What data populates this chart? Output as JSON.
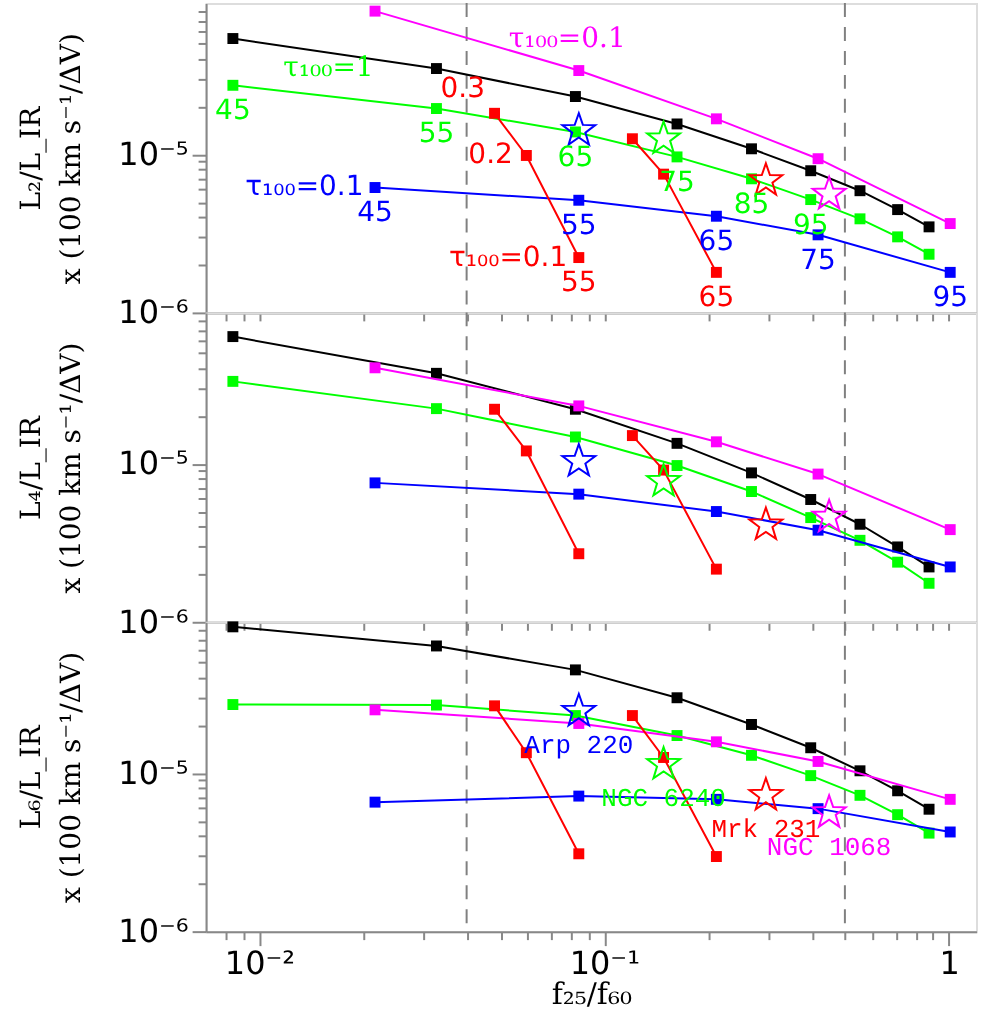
{
  "chart_data": [
    {
      "type": "line",
      "ylabel": "L₂/L_IR\nx (100 km s⁻¹/ΔV)",
      "log": "xy",
      "marker": "square",
      "tick_labels": "y",
      "xlim": [
        0.007,
        1.2
      ],
      "ylim": [
        1e-06,
        9e-05
      ],
      "xticks": [
        {
          "value": 0.008,
          "label": null
        },
        {
          "value": 0.009,
          "label": null
        },
        {
          "value": 0.01,
          "label": null
        },
        {
          "value": 0.02,
          "label": null
        },
        {
          "value": 0.03,
          "label": null
        },
        {
          "value": 0.04,
          "label": null
        },
        {
          "value": 0.05,
          "label": null
        },
        {
          "value": 0.06,
          "label": null
        },
        {
          "value": 0.07,
          "label": null
        },
        {
          "value": 0.08,
          "label": null
        },
        {
          "value": 0.09,
          "label": null
        },
        {
          "value": 0.1,
          "label": null
        },
        {
          "value": 0.2,
          "label": null
        },
        {
          "value": 0.3,
          "label": null
        },
        {
          "value": 0.4,
          "label": null
        },
        {
          "value": 0.5,
          "label": null
        },
        {
          "value": 0.6,
          "label": null
        },
        {
          "value": 0.7,
          "label": null
        },
        {
          "value": 0.8,
          "label": null
        },
        {
          "value": 0.9,
          "label": null
        },
        {
          "value": 1,
          "label": null
        }
      ],
      "yticks": [
        {
          "value": 1e-06,
          "label": "10⁻⁶"
        },
        {
          "value": 2e-06,
          "label": null
        },
        {
          "value": 3e-06,
          "label": null
        },
        {
          "value": 4e-06,
          "label": null
        },
        {
          "value": 5e-06,
          "label": null
        },
        {
          "value": 6e-06,
          "label": null
        },
        {
          "value": 7e-06,
          "label": null
        },
        {
          "value": 8e-06,
          "label": null
        },
        {
          "value": 9e-06,
          "label": null
        },
        {
          "value": 1e-05,
          "label": "10⁻⁵"
        },
        {
          "value": 2e-05,
          "label": null
        },
        {
          "value": 3e-05,
          "label": null
        },
        {
          "value": 4e-05,
          "label": null
        },
        {
          "value": 5e-05,
          "label": null
        },
        {
          "value": 6e-05,
          "label": null
        },
        {
          "value": 7e-05,
          "label": null
        },
        {
          "value": 8e-05,
          "label": null
        }
      ],
      "ref_lines": [
        {
          "axis": "x",
          "value": 0.04,
          "color": "#808080",
          "line_style": "dashed"
        },
        {
          "axis": "x",
          "value": 0.5,
          "color": "#808080",
          "line_style": "dashed"
        }
      ],
      "series": [
        {
          "color": "#000000",
          "x": [
            0.0084,
            0.0327,
            0.0827,
            0.163,
            0.268,
            0.398,
            0.553,
            0.711,
            0.877
          ],
          "values": [
            5.37e-05,
            3.47e-05,
            2.31e-05,
            1.55e-05,
            1.08e-05,
            7.85e-06,
            5.87e-06,
            4.46e-06,
            3.47e-06
          ]
        },
        {
          "color": "#00ff00",
          "x": [
            0.0084,
            0.0327,
            0.0827,
            0.163,
            0.268,
            0.398,
            0.553,
            0.711,
            0.877
          ],
          "values": [
            2.72e-05,
            1.94e-05,
            1.38e-05,
            9.6e-06,
            6.98e-06,
            5.16e-06,
            3.9e-06,
            3e-06,
            2.33e-06
          ]
        },
        {
          "color": "#ff00ff",
          "x": [
            0.0217,
            0.0846,
            0.212,
            0.418,
            1.01
          ],
          "values": [
            8e-05,
            3.37e-05,
            1.67e-05,
            9.35e-06,
            3.64e-06
          ]
        },
        {
          "color": "#0000ff",
          "x": [
            0.0217,
            0.0846,
            0.212,
            0.418,
            1.01
          ],
          "values": [
            6.15e-06,
            5.11e-06,
            4.05e-06,
            3.09e-06,
            1.79e-06
          ]
        },
        {
          "color": "#ff0000",
          "x": [
            0.0482,
            0.0596,
            0.0846
          ],
          "values": [
            1.81e-05,
            9.8e-06,
            2.22e-06
          ]
        },
        {
          "color": "#ff0000",
          "x": [
            0.121,
            0.149,
            0.212
          ],
          "values": [
            1.25e-05,
            7.47e-06,
            1.79e-06
          ]
        },
        {
          "type": "scatter",
          "marker": "star",
          "color": "#0000ff",
          "x": [
            0.0846
          ],
          "values": [
            1.41e-05
          ]
        },
        {
          "type": "scatter",
          "marker": "star",
          "color": "#00ff00",
          "x": [
            0.149
          ],
          "values": [
            1.25e-05
          ]
        },
        {
          "type": "scatter",
          "marker": "star",
          "color": "#ff0000",
          "x": [
            0.295
          ],
          "values": [
            6.8e-06
          ]
        },
        {
          "type": "scatter",
          "marker": "star",
          "color": "#ff00ff",
          "x": [
            0.45
          ],
          "values": [
            5.58e-06
          ]
        }
      ],
      "annotations": [
        {
          "text": "τ₁₀₀=0.1",
          "x": 0.0783,
          "y": 3.54e-05
        },
        {
          "text": "τ₁₀₀=1",
          "x": 0.0159,
          "y": 2.32e-05
        },
        {
          "text": "0.3",
          "x": 0.0482,
          "y": 1.81e-05
        },
        {
          "text": "0.2",
          "x": 0.0596,
          "y": 9.8e-06
        },
        {
          "text": "45",
          "x": 0.0084,
          "y": 2.72e-05
        },
        {
          "text": "55",
          "x": 0.0327,
          "y": 1.94e-05
        },
        {
          "text": "65",
          "x": 0.0827,
          "y": 1.38e-05
        },
        {
          "text": "75",
          "x": 0.163,
          "y": 9.6e-06
        },
        {
          "text": "85",
          "x": 0.268,
          "y": 6.98e-06
        },
        {
          "text": "95",
          "x": 0.398,
          "y": 5.16e-06
        },
        {
          "text": "45",
          "x": 0.0217,
          "y": 6.15e-06
        },
        {
          "text": "τ₁₀₀=0.1",
          "x": 0.0217,
          "y": 6.15e-06
        },
        {
          "text": "55",
          "x": 0.0846,
          "y": 5.11e-06
        },
        {
          "text": "65",
          "x": 0.212,
          "y": 4.05e-06
        },
        {
          "text": "75",
          "x": 0.418,
          "y": 3.09e-06
        },
        {
          "text": "95",
          "x": 1.01,
          "y": 1.79e-06
        },
        {
          "text": "55",
          "x": 0.0846,
          "y": 2.22e-06
        },
        {
          "text": "τ₁₀₀=0.1",
          "x": 0.0846,
          "y": 2.22e-06
        },
        {
          "text": "65",
          "x": 0.212,
          "y": 1.79e-06
        }
      ]
    },
    {
      "type": "line",
      "ylabel": "L₄/L_IR\nx (100 km s⁻¹/ΔV)",
      "log": "xy",
      "marker": "square",
      "tick_labels": "y",
      "xlim": [
        0.007,
        1.2
      ],
      "ylim": [
        1e-06,
        9e-05
      ],
      "xticks": [
        {
          "value": 0.008,
          "label": null
        },
        {
          "value": 0.009,
          "label": null
        },
        {
          "value": 0.01,
          "label": null
        },
        {
          "value": 0.02,
          "label": null
        },
        {
          "value": 0.03,
          "label": null
        },
        {
          "value": 0.04,
          "label": null
        },
        {
          "value": 0.05,
          "label": null
        },
        {
          "value": 0.06,
          "label": null
        },
        {
          "value": 0.07,
          "label": null
        },
        {
          "value": 0.08,
          "label": null
        },
        {
          "value": 0.09,
          "label": null
        },
        {
          "value": 0.1,
          "label": null
        },
        {
          "value": 0.2,
          "label": null
        },
        {
          "value": 0.3,
          "label": null
        },
        {
          "value": 0.4,
          "label": null
        },
        {
          "value": 0.5,
          "label": null
        },
        {
          "value": 0.6,
          "label": null
        },
        {
          "value": 0.7,
          "label": null
        },
        {
          "value": 0.8,
          "label": null
        },
        {
          "value": 0.9,
          "label": null
        },
        {
          "value": 1,
          "label": null
        }
      ],
      "yticks": [
        {
          "value": 1e-06,
          "label": "10⁻⁶"
        },
        {
          "value": 2e-06,
          "label": null
        },
        {
          "value": 3e-06,
          "label": null
        },
        {
          "value": 4e-06,
          "label": null
        },
        {
          "value": 5e-06,
          "label": null
        },
        {
          "value": 6e-06,
          "label": null
        },
        {
          "value": 7e-06,
          "label": null
        },
        {
          "value": 8e-06,
          "label": null
        },
        {
          "value": 9e-06,
          "label": null
        },
        {
          "value": 1e-05,
          "label": "10⁻⁵"
        },
        {
          "value": 2e-05,
          "label": null
        },
        {
          "value": 3e-05,
          "label": null
        },
        {
          "value": 4e-05,
          "label": null
        },
        {
          "value": 5e-05,
          "label": null
        },
        {
          "value": 6e-05,
          "label": null
        },
        {
          "value": 7e-05,
          "label": null
        },
        {
          "value": 8e-05,
          "label": null
        }
      ],
      "ref_lines": [
        {
          "axis": "x",
          "value": 0.04,
          "color": "#808080",
          "line_style": "dashed"
        },
        {
          "axis": "x",
          "value": 0.5,
          "color": "#808080",
          "line_style": "dashed"
        }
      ],
      "series": [
        {
          "color": "#000000",
          "x": [
            0.0084,
            0.0327,
            0.0827,
            0.163,
            0.268,
            0.398,
            0.553,
            0.711,
            0.877
          ],
          "values": [
            6.33e-05,
            3.71e-05,
            2.2e-05,
            1.34e-05,
            8.72e-06,
            5.92e-06,
            4.13e-06,
            2.97e-06,
            2.22e-06
          ]
        },
        {
          "color": "#00ff00",
          "x": [
            0.0084,
            0.0327,
            0.0827,
            0.163,
            0.268,
            0.398,
            0.553,
            0.711,
            0.877
          ],
          "values": [
            3.3e-05,
            2.22e-05,
            1.47e-05,
            9.7e-06,
            6.65e-06,
            4.55e-06,
            3.27e-06,
            2.38e-06,
            1.75e-06
          ]
        },
        {
          "color": "#ff00ff",
          "x": [
            0.0217,
            0.0846,
            0.212,
            0.418,
            1.01
          ],
          "values": [
            4.02e-05,
            2.31e-05,
            1.37e-05,
            8.57e-06,
            3.82e-06
          ]
        },
        {
          "color": "#0000ff",
          "x": [
            0.0217,
            0.0846,
            0.212,
            0.418,
            1.01
          ],
          "values": [
            7.54e-06,
            6.4e-06,
            4.97e-06,
            3.79e-06,
            2.22e-06
          ]
        },
        {
          "color": "#ff0000",
          "x": [
            0.0482,
            0.0596,
            0.0846
          ],
          "values": [
            2.2e-05,
            1.2e-05,
            2.69e-06
          ]
        },
        {
          "color": "#ff0000",
          "x": [
            0.121,
            0.149,
            0.212
          ],
          "values": [
            1.5e-05,
            9.08e-06,
            2.15e-06
          ]
        },
        {
          "type": "scatter",
          "marker": "star",
          "color": "#0000ff",
          "x": [
            0.0846
          ],
          "values": [
            1.03e-05
          ]
        },
        {
          "type": "scatter",
          "marker": "star",
          "color": "#00ff00",
          "x": [
            0.149
          ],
          "values": [
            7.7e-06
          ]
        },
        {
          "type": "scatter",
          "marker": "star",
          "color": "#ff0000",
          "x": [
            0.295
          ],
          "values": [
            4.09e-06
          ]
        },
        {
          "type": "scatter",
          "marker": "star",
          "color": "#ff00ff",
          "x": [
            0.45
          ],
          "values": [
            4.59e-06
          ]
        }
      ]
    },
    {
      "type": "line",
      "xlabel": "f₂₅/f₆₀",
      "ylabel": "L₆/L_IR\nx (100 km s⁻¹/ΔV)",
      "log": "xy",
      "marker": "square",
      "xlim": [
        0.007,
        1.2
      ],
      "ylim": [
        1e-06,
        9e-05
      ],
      "xticks": [
        {
          "value": 0.008,
          "label": null
        },
        {
          "value": 0.009,
          "label": null
        },
        {
          "value": 0.01,
          "label": "10⁻²"
        },
        {
          "value": 0.02,
          "label": null
        },
        {
          "value": 0.03,
          "label": null
        },
        {
          "value": 0.04,
          "label": null
        },
        {
          "value": 0.05,
          "label": null
        },
        {
          "value": 0.06,
          "label": null
        },
        {
          "value": 0.07,
          "label": null
        },
        {
          "value": 0.08,
          "label": null
        },
        {
          "value": 0.09,
          "label": null
        },
        {
          "value": 0.1,
          "label": "10⁻¹"
        },
        {
          "value": 0.2,
          "label": null
        },
        {
          "value": 0.3,
          "label": null
        },
        {
          "value": 0.4,
          "label": null
        },
        {
          "value": 0.5,
          "label": null
        },
        {
          "value": 0.6,
          "label": null
        },
        {
          "value": 0.7,
          "label": null
        },
        {
          "value": 0.8,
          "label": null
        },
        {
          "value": 0.9,
          "label": null
        },
        1
      ],
      "yticks": [
        {
          "value": 1e-06,
          "label": "10⁻⁶"
        },
        {
          "value": 2e-06,
          "label": null
        },
        {
          "value": 3e-06,
          "label": null
        },
        {
          "value": 4e-06,
          "label": null
        },
        {
          "value": 5e-06,
          "label": null
        },
        {
          "value": 6e-06,
          "label": null
        },
        {
          "value": 7e-06,
          "label": null
        },
        {
          "value": 8e-06,
          "label": null
        },
        {
          "value": 9e-06,
          "label": null
        },
        {
          "value": 1e-05,
          "label": "10⁻⁵"
        },
        {
          "value": 2e-05,
          "label": null
        },
        {
          "value": 3e-05,
          "label": null
        },
        {
          "value": 4e-05,
          "label": null
        },
        {
          "value": 5e-05,
          "label": null
        },
        {
          "value": 6e-05,
          "label": null
        },
        {
          "value": 7e-05,
          "label": null
        },
        {
          "value": 8e-05,
          "label": null
        }
      ],
      "ref_lines": [
        {
          "axis": "x",
          "value": 0.04,
          "color": "#808080",
          "line_style": "dashed"
        },
        {
          "axis": "x",
          "value": 0.5,
          "color": "#808080",
          "line_style": "dashed"
        }
      ],
      "series": [
        {
          "color": "#000000",
          "x": [
            0.0084,
            0.0327,
            0.0827,
            0.163,
            0.268,
            0.398,
            0.553,
            0.711,
            0.877
          ],
          "values": [
            8.36e-05,
            6.33e-05,
            4.47e-05,
            2.98e-05,
            2.02e-05,
            1.44e-05,
            1.03e-05,
            7.7e-06,
            5.89e-06
          ]
        },
        {
          "color": "#00ff00",
          "x": [
            0.0084,
            0.0327,
            0.0827,
            0.163,
            0.268,
            0.398,
            0.553,
            0.711,
            0.877
          ],
          "values": [
            2.7e-05,
            2.68e-05,
            2.3e-05,
            1.72e-05,
            1.29e-05,
            9.6e-06,
            7.21e-06,
            5.44e-06,
            4.16e-06
          ]
        },
        {
          "color": "#ff00ff",
          "x": [
            0.0217,
            0.0846,
            0.212,
            0.418,
            1.01
          ],
          "values": [
            2.5e-05,
            2.05e-05,
            1.57e-05,
            1.18e-05,
            6.8e-06
          ]
        },
        {
          "color": "#0000ff",
          "x": [
            0.0217,
            0.0846,
            0.212,
            0.418,
            1.01
          ],
          "values": [
            6.53e-06,
            7.13e-06,
            6.8e-06,
            5.94e-06,
            4.23e-06
          ]
        },
        {
          "color": "#ff0000",
          "x": [
            0.0482,
            0.0596,
            0.0846
          ],
          "values": [
            2.65e-05,
            1.34e-05,
            3.08e-06
          ]
        },
        {
          "color": "#ff0000",
          "x": [
            0.121,
            0.149,
            0.212
          ],
          "values": [
            2.3e-05,
            1.25e-05,
            2.96e-06
          ]
        },
        {
          "type": "scatter",
          "marker": "star",
          "name": "Arp 220",
          "color": "#0000ff",
          "x": [
            0.0846
          ],
          "values": [
            2.45e-05
          ]
        },
        {
          "type": "scatter",
          "marker": "star",
          "name": "NGC 6240",
          "color": "#00ff00",
          "x": [
            0.149
          ],
          "values": [
            1.13e-05
          ]
        },
        {
          "type": "scatter",
          "marker": "star",
          "name": "Mrk 231",
          "color": "#ff0000",
          "x": [
            0.295
          ],
          "values": [
            7.2e-06
          ]
        },
        {
          "type": "scatter",
          "marker": "star",
          "name": "NGC 1068",
          "color": "#ff00ff",
          "x": [
            0.45
          ],
          "values": [
            5.6e-06
          ]
        }
      ]
    }
  ]
}
